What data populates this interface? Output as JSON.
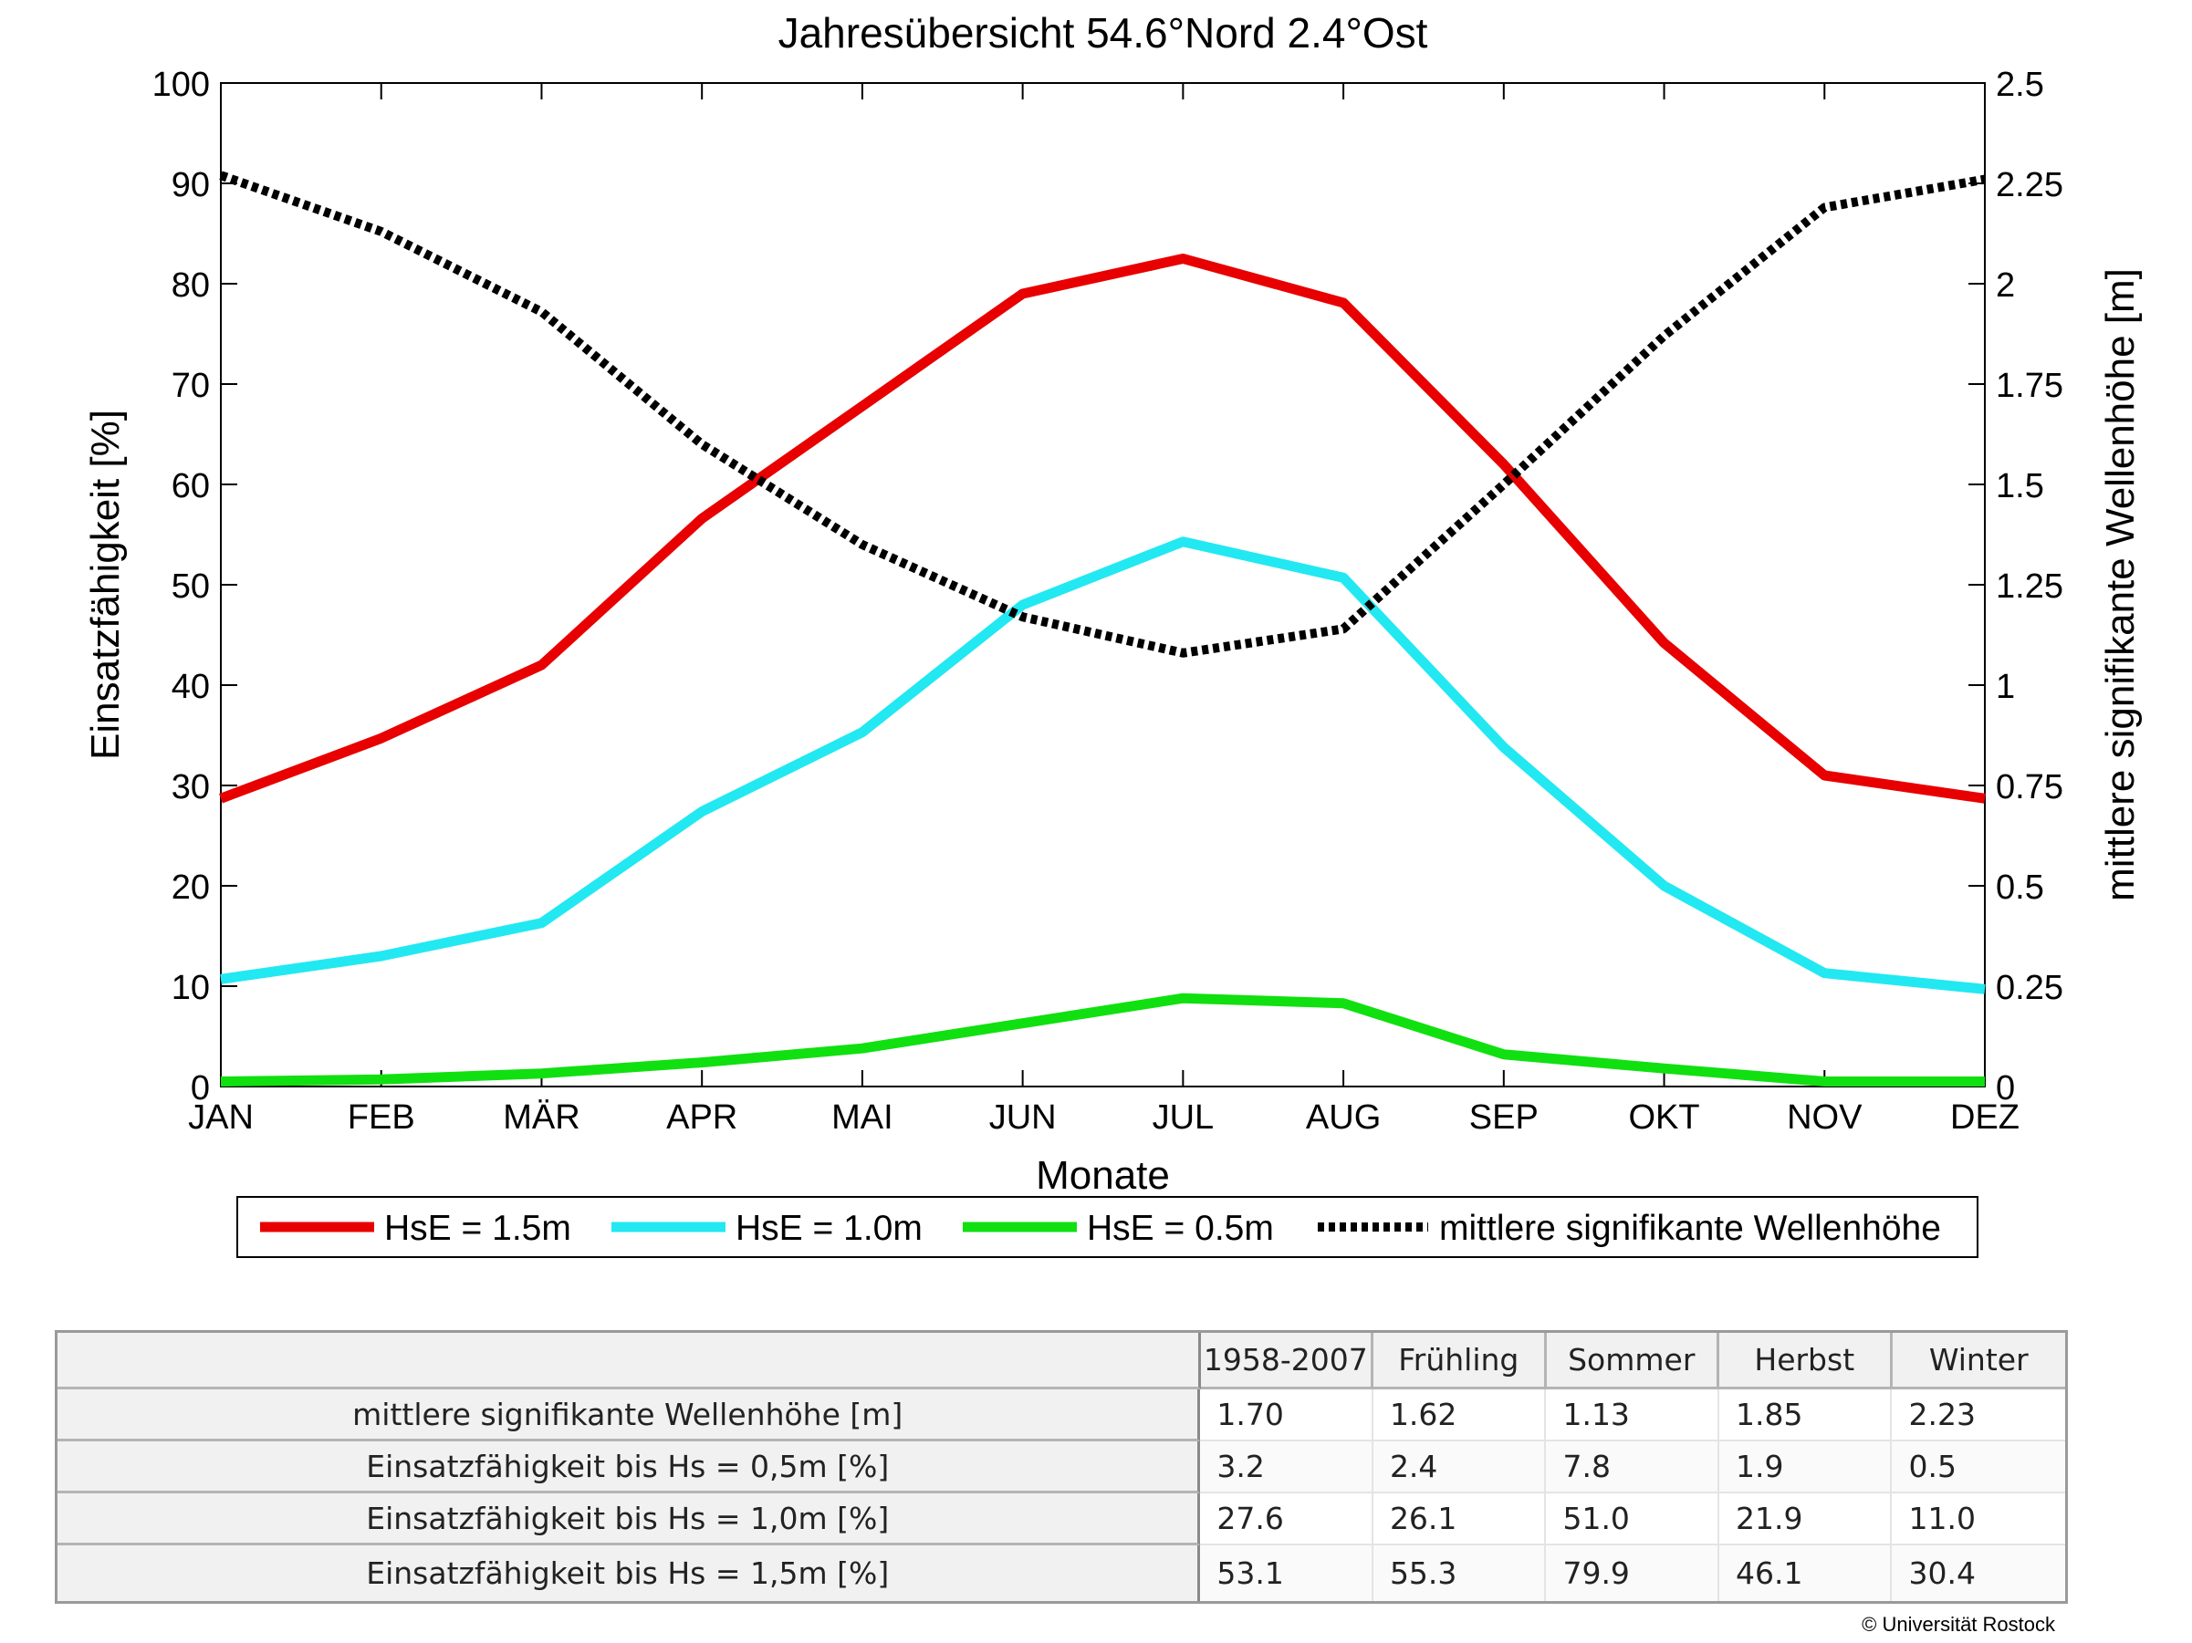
{
  "chart_data": {
    "type": "line",
    "title": "Jahresübersicht  54.6°Nord  2.4°Ost",
    "xlabel": "Monate",
    "ylabel": "Einsatzfähigkeit [%]",
    "ylabel_right": "mittlere signifikante Wellenhöhe [m]",
    "categories": [
      "JAN",
      "FEB",
      "MÄR",
      "APR",
      "MAI",
      "JUN",
      "JUL",
      "AUG",
      "SEP",
      "OKT",
      "NOV",
      "DEZ"
    ],
    "ylim": [
      0,
      100
    ],
    "ylim_right": [
      0,
      2.5
    ],
    "yticks": [
      "0",
      "10",
      "20",
      "30",
      "40",
      "50",
      "60",
      "70",
      "80",
      "90",
      "100"
    ],
    "yticks_right": [
      "0",
      "0.25",
      "0.5",
      "0.75",
      "1",
      "1.25",
      "1.5",
      "1.75",
      "2",
      "2.25",
      "2.5"
    ],
    "grid": false,
    "legend_position": "bottom",
    "series": [
      {
        "name": "HsE = 1.5m",
        "axis": "left",
        "color": "#e80000",
        "style": "solid",
        "values": [
          28.7,
          34.7,
          42.0,
          56.6,
          67.8,
          79.0,
          82.5,
          78.1,
          62.0,
          44.2,
          31.0,
          28.7
        ]
      },
      {
        "name": "HsE = 1.0m",
        "axis": "left",
        "color": "#22e8f2",
        "style": "solid",
        "values": [
          10.7,
          13.0,
          16.3,
          27.4,
          35.3,
          48.0,
          54.3,
          50.7,
          33.8,
          20.0,
          11.3,
          9.7
        ]
      },
      {
        "name": "HsE = 0.5m",
        "axis": "left",
        "color": "#10e010",
        "style": "solid",
        "values": [
          0.5,
          0.7,
          1.3,
          2.4,
          3.8,
          6.3,
          8.8,
          8.3,
          3.2,
          1.8,
          0.5,
          0.5
        ]
      },
      {
        "name": "mittlere signifikante Wellenhöhe",
        "axis": "right",
        "color": "#000000",
        "style": "dotted",
        "values": [
          2.27,
          2.13,
          1.93,
          1.6,
          1.35,
          1.17,
          1.08,
          1.14,
          1.5,
          1.87,
          2.19,
          2.26
        ]
      }
    ]
  },
  "table": {
    "headers": [
      "",
      "1958-2007",
      "Frühling",
      "Sommer",
      "Herbst",
      "Winter"
    ],
    "rows": [
      {
        "label": "mittlere signifikante Wellenhöhe [m]",
        "values": [
          "1.70",
          "1.62",
          "1.13",
          "1.85",
          "2.23"
        ]
      },
      {
        "label": "Einsatzfähigkeit bis Hs = 0,5m [%]",
        "values": [
          "3.2",
          "2.4",
          "7.8",
          "1.9",
          "0.5"
        ]
      },
      {
        "label": "Einsatzfähigkeit bis Hs = 1,0m [%]",
        "values": [
          "27.6",
          "26.1",
          "51.0",
          "21.9",
          "11.0"
        ]
      },
      {
        "label": "Einsatzfähigkeit bis Hs = 1,5m [%]",
        "values": [
          "53.1",
          "55.3",
          "79.9",
          "46.1",
          "30.4"
        ]
      }
    ]
  },
  "copyright": "© Universität Rostock"
}
